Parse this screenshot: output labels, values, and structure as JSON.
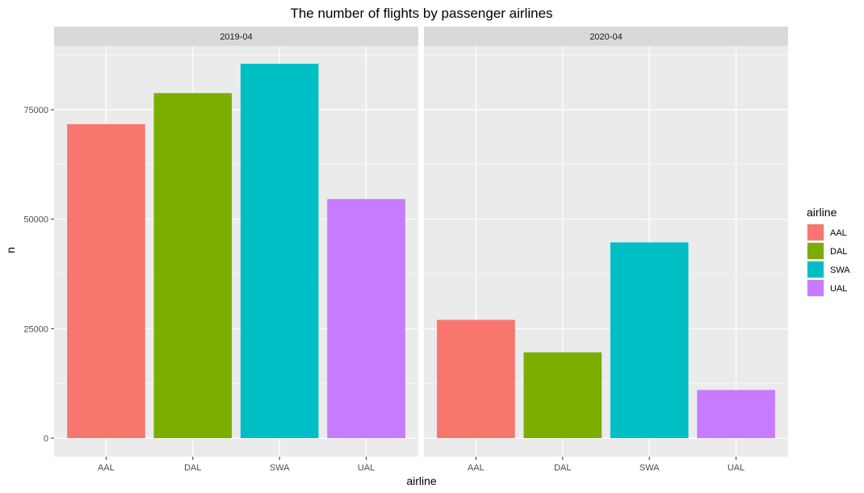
{
  "chart_data": {
    "type": "bar",
    "title": "The number of flights by passenger airlines",
    "xlabel": "airline",
    "ylabel": "n",
    "categories": [
      "AAL",
      "DAL",
      "SWA",
      "UAL"
    ],
    "ylim": [
      0,
      90000
    ],
    "yticks": [
      0,
      25000,
      50000,
      75000
    ],
    "facets": [
      {
        "name": "2019-04",
        "values": [
          71700,
          78800,
          85500,
          54600
        ]
      },
      {
        "name": "2020-04",
        "values": [
          27000,
          19600,
          44700,
          11000
        ]
      }
    ],
    "colors": {
      "AAL": "#F8766D",
      "DAL": "#7CAE00",
      "SWA": "#00BFC4",
      "UAL": "#C77CFF"
    },
    "legend": {
      "title": "airline",
      "placement": "right"
    },
    "grid": true
  }
}
